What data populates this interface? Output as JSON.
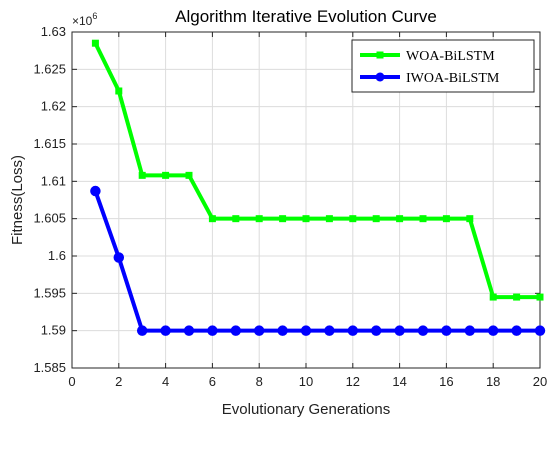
{
  "chart_data": {
    "type": "line",
    "title": "Algorithm Iterative Evolution Curve",
    "xlabel": "Evolutionary Generations",
    "ylabel": "Fitness(Loss)",
    "y_exponent_label": "×10",
    "y_exponent_power": "6",
    "xlim": [
      0,
      20
    ],
    "ylim": [
      1.585,
      1.63
    ],
    "x_ticks": [
      "0",
      "2",
      "4",
      "6",
      "8",
      "10",
      "12",
      "14",
      "16",
      "18",
      "20"
    ],
    "y_ticks": [
      "1.585",
      "1.59",
      "1.595",
      "1.6",
      "1.605",
      "1.61",
      "1.615",
      "1.62",
      "1.625",
      "1.63"
    ],
    "grid": true,
    "legend_position": "top-right",
    "x": [
      1,
      2,
      3,
      4,
      5,
      6,
      7,
      8,
      9,
      10,
      11,
      12,
      13,
      14,
      15,
      16,
      17,
      18,
      19,
      20
    ],
    "series": [
      {
        "name": "WOA-BiLSTM",
        "color": "#00ff00",
        "marker": "square",
        "values": [
          1.6285,
          1.6221,
          1.6108,
          1.6108,
          1.6108,
          1.605,
          1.605,
          1.605,
          1.605,
          1.605,
          1.605,
          1.605,
          1.605,
          1.605,
          1.605,
          1.605,
          1.605,
          1.5945,
          1.5945,
          1.5945
        ]
      },
      {
        "name": "IWOA-BiLSTM",
        "color": "#0000ff",
        "marker": "circle",
        "values": [
          1.6087,
          1.5998,
          1.59,
          1.59,
          1.59,
          1.59,
          1.59,
          1.59,
          1.59,
          1.59,
          1.59,
          1.59,
          1.59,
          1.59,
          1.59,
          1.59,
          1.59,
          1.59,
          1.59,
          1.59
        ]
      }
    ]
  }
}
